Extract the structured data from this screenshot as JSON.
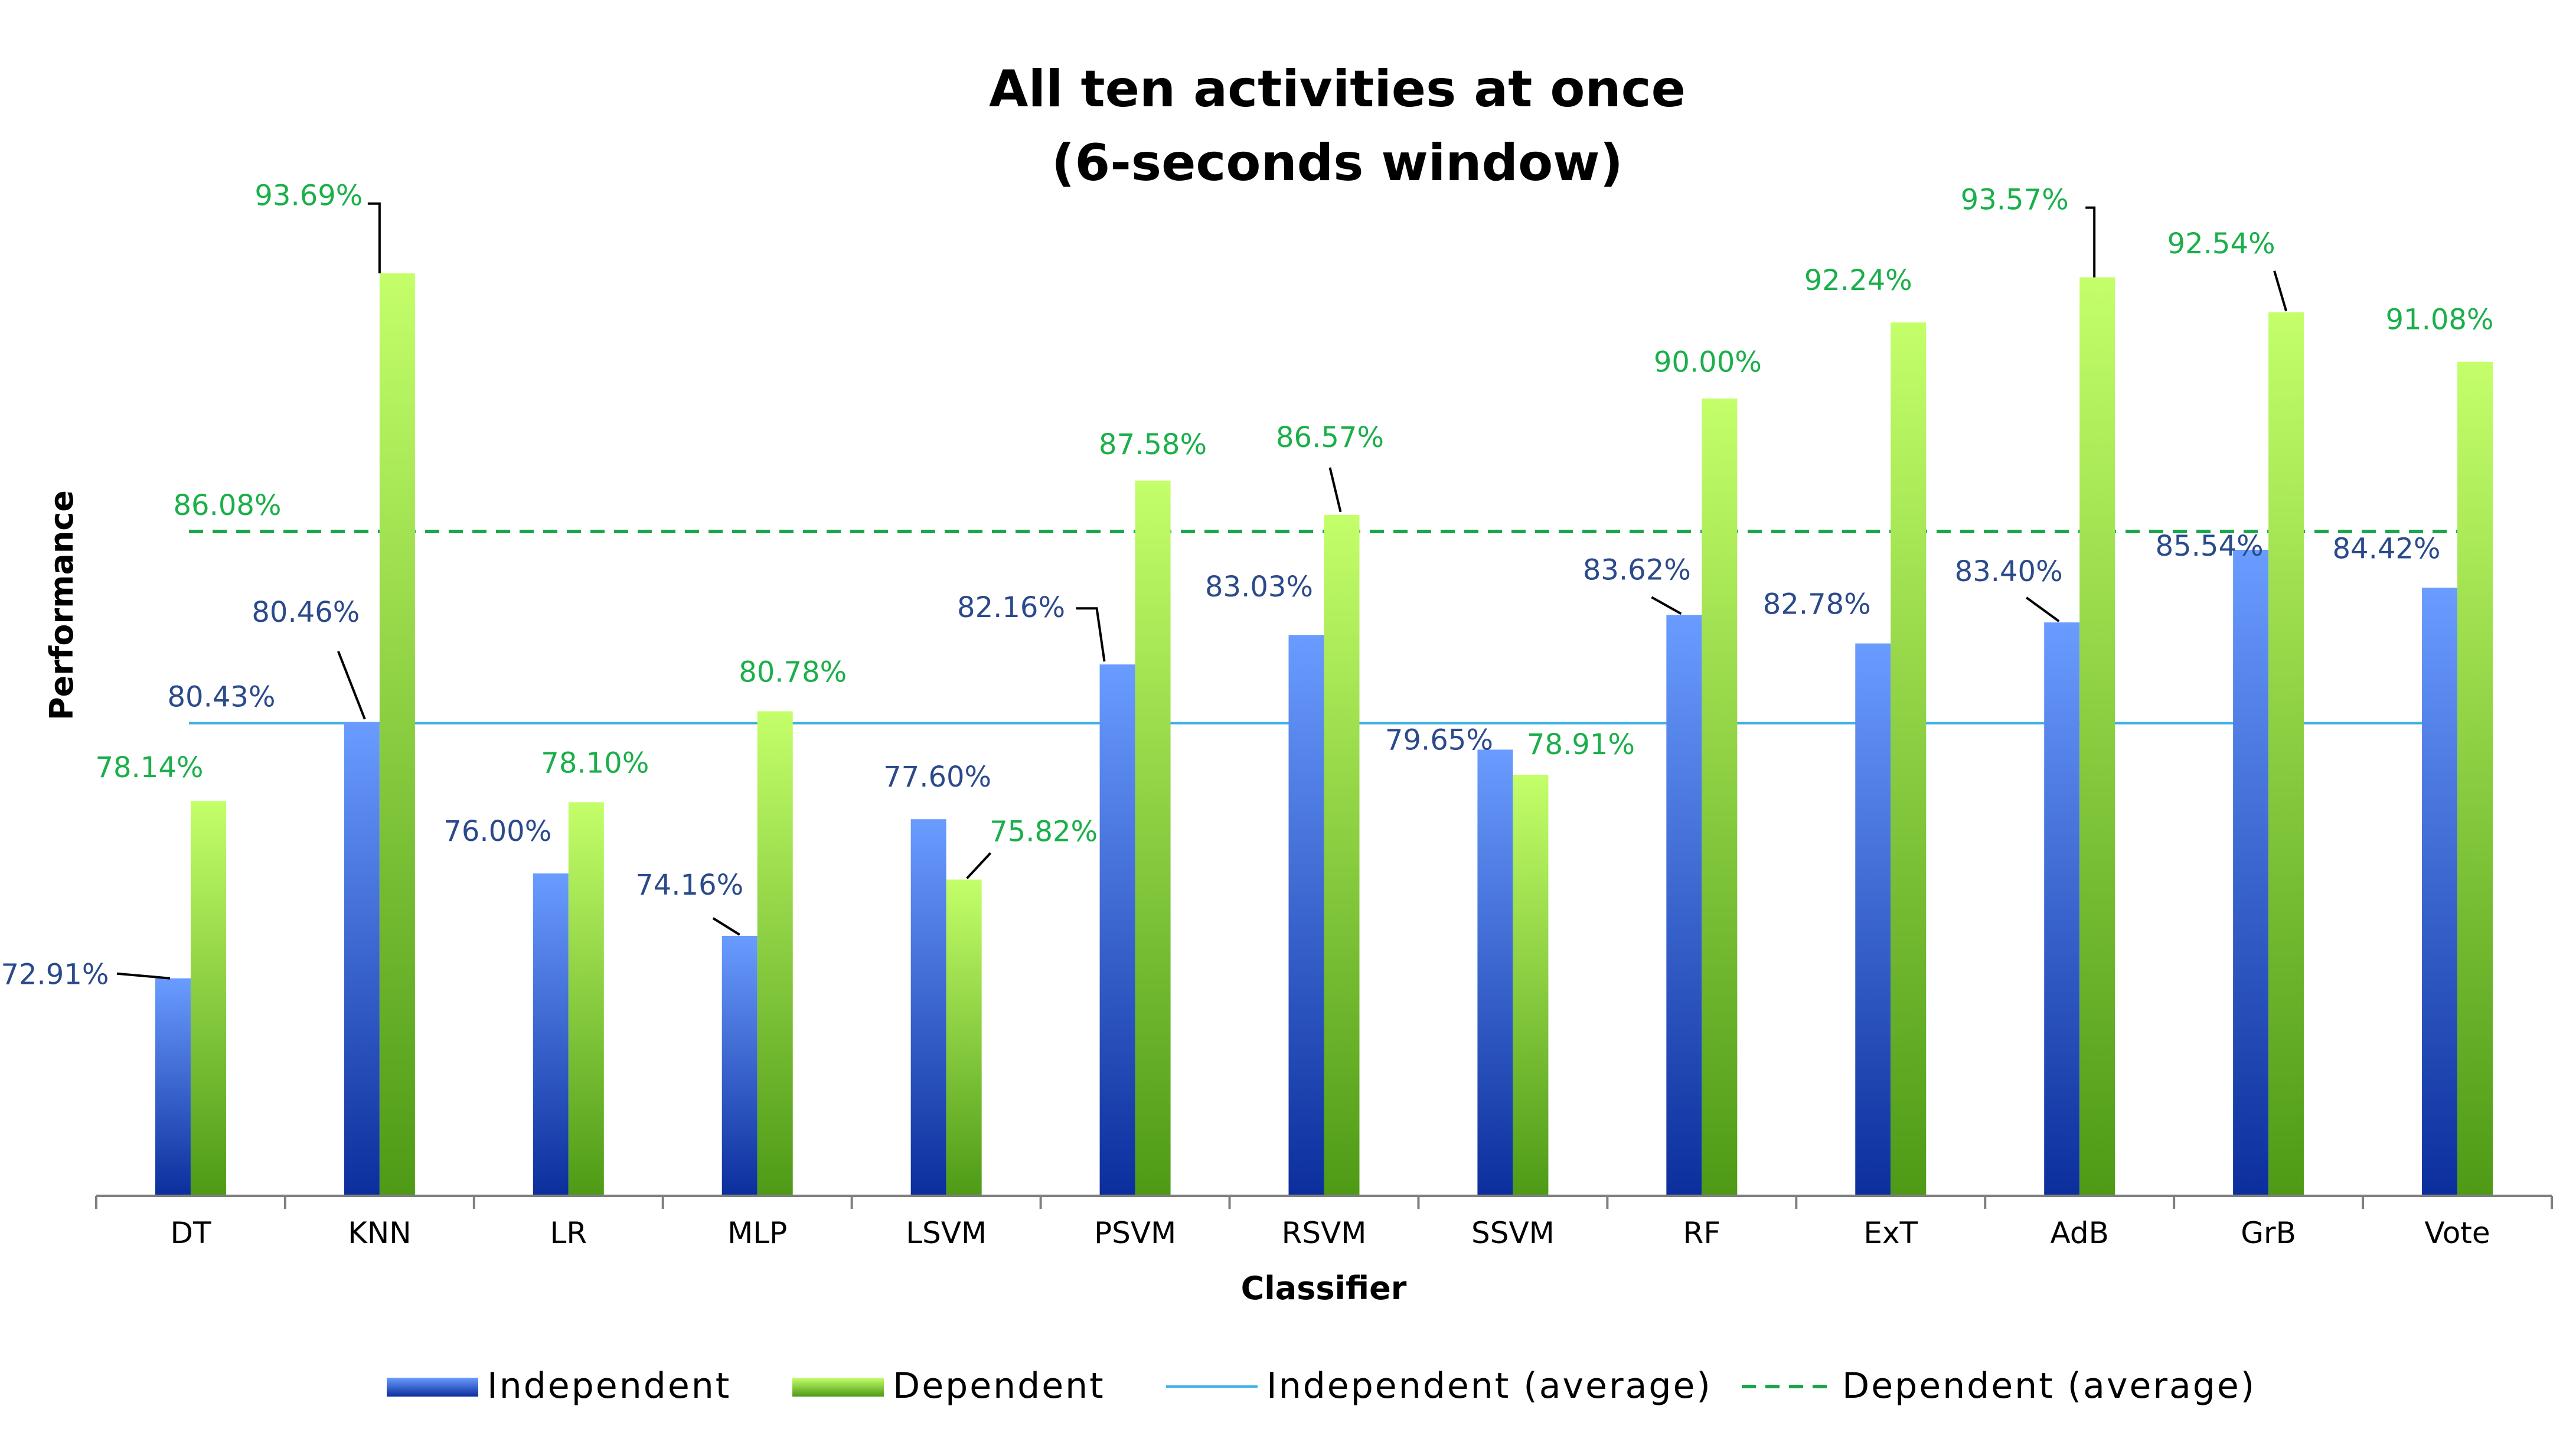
{
  "chart_data": {
    "type": "bar",
    "title_lines": [
      "All ten activities at once",
      "(6-seconds window)"
    ],
    "xlabel": "Classifier",
    "ylabel": "Performance",
    "ylim": [
      66.5,
      96.0
    ],
    "grid": false,
    "categories": [
      "DT",
      "KNN",
      "LR",
      "MLP",
      "LSVM",
      "PSVM",
      "RSVM",
      "SSVM",
      "RF",
      "ExT",
      "AdB",
      "GrB",
      "Vote"
    ],
    "series": [
      {
        "name": "Independent",
        "values": [
          72.91,
          80.46,
          76.0,
          74.16,
          77.6,
          82.16,
          83.03,
          79.65,
          83.62,
          82.78,
          83.4,
          85.54,
          84.42
        ],
        "labels": [
          "72.91%",
          "80.46%",
          "76.00%",
          "74.16%",
          "77.60%",
          "82.16%",
          "83.03%",
          "79.65%",
          "83.62%",
          "82.78%",
          "83.40%",
          "85.54%",
          "84.42%"
        ],
        "color_top": "#6A9CFF",
        "color_bottom": "#0B2E9C"
      },
      {
        "name": "Dependent",
        "values": [
          78.14,
          93.69,
          78.1,
          80.78,
          75.82,
          87.58,
          86.57,
          78.91,
          90.0,
          92.24,
          93.57,
          92.54,
          91.08
        ],
        "labels": [
          "78.14%",
          "93.69%",
          "78.10%",
          "80.78%",
          "75.82%",
          "87.58%",
          "86.57%",
          "78.91%",
          "90.00%",
          "92.24%",
          "93.57%",
          "92.54%",
          "91.08%"
        ],
        "color_top": "#C4FF6A",
        "color_bottom": "#4E9A16"
      }
    ],
    "averages": [
      {
        "name": "Independent (average)",
        "value": 80.43,
        "label": "80.43%",
        "style": "solid",
        "color": "#3FB0E6"
      },
      {
        "name": "Dependent (average)",
        "value": 86.08,
        "label": "86.08%",
        "style": "dashed",
        "color": "#19A64A"
      }
    ],
    "legend": {
      "position": "bottom",
      "entries": [
        "Independent",
        "Dependent",
        "Independent (average)",
        "Dependent (average)"
      ]
    }
  }
}
